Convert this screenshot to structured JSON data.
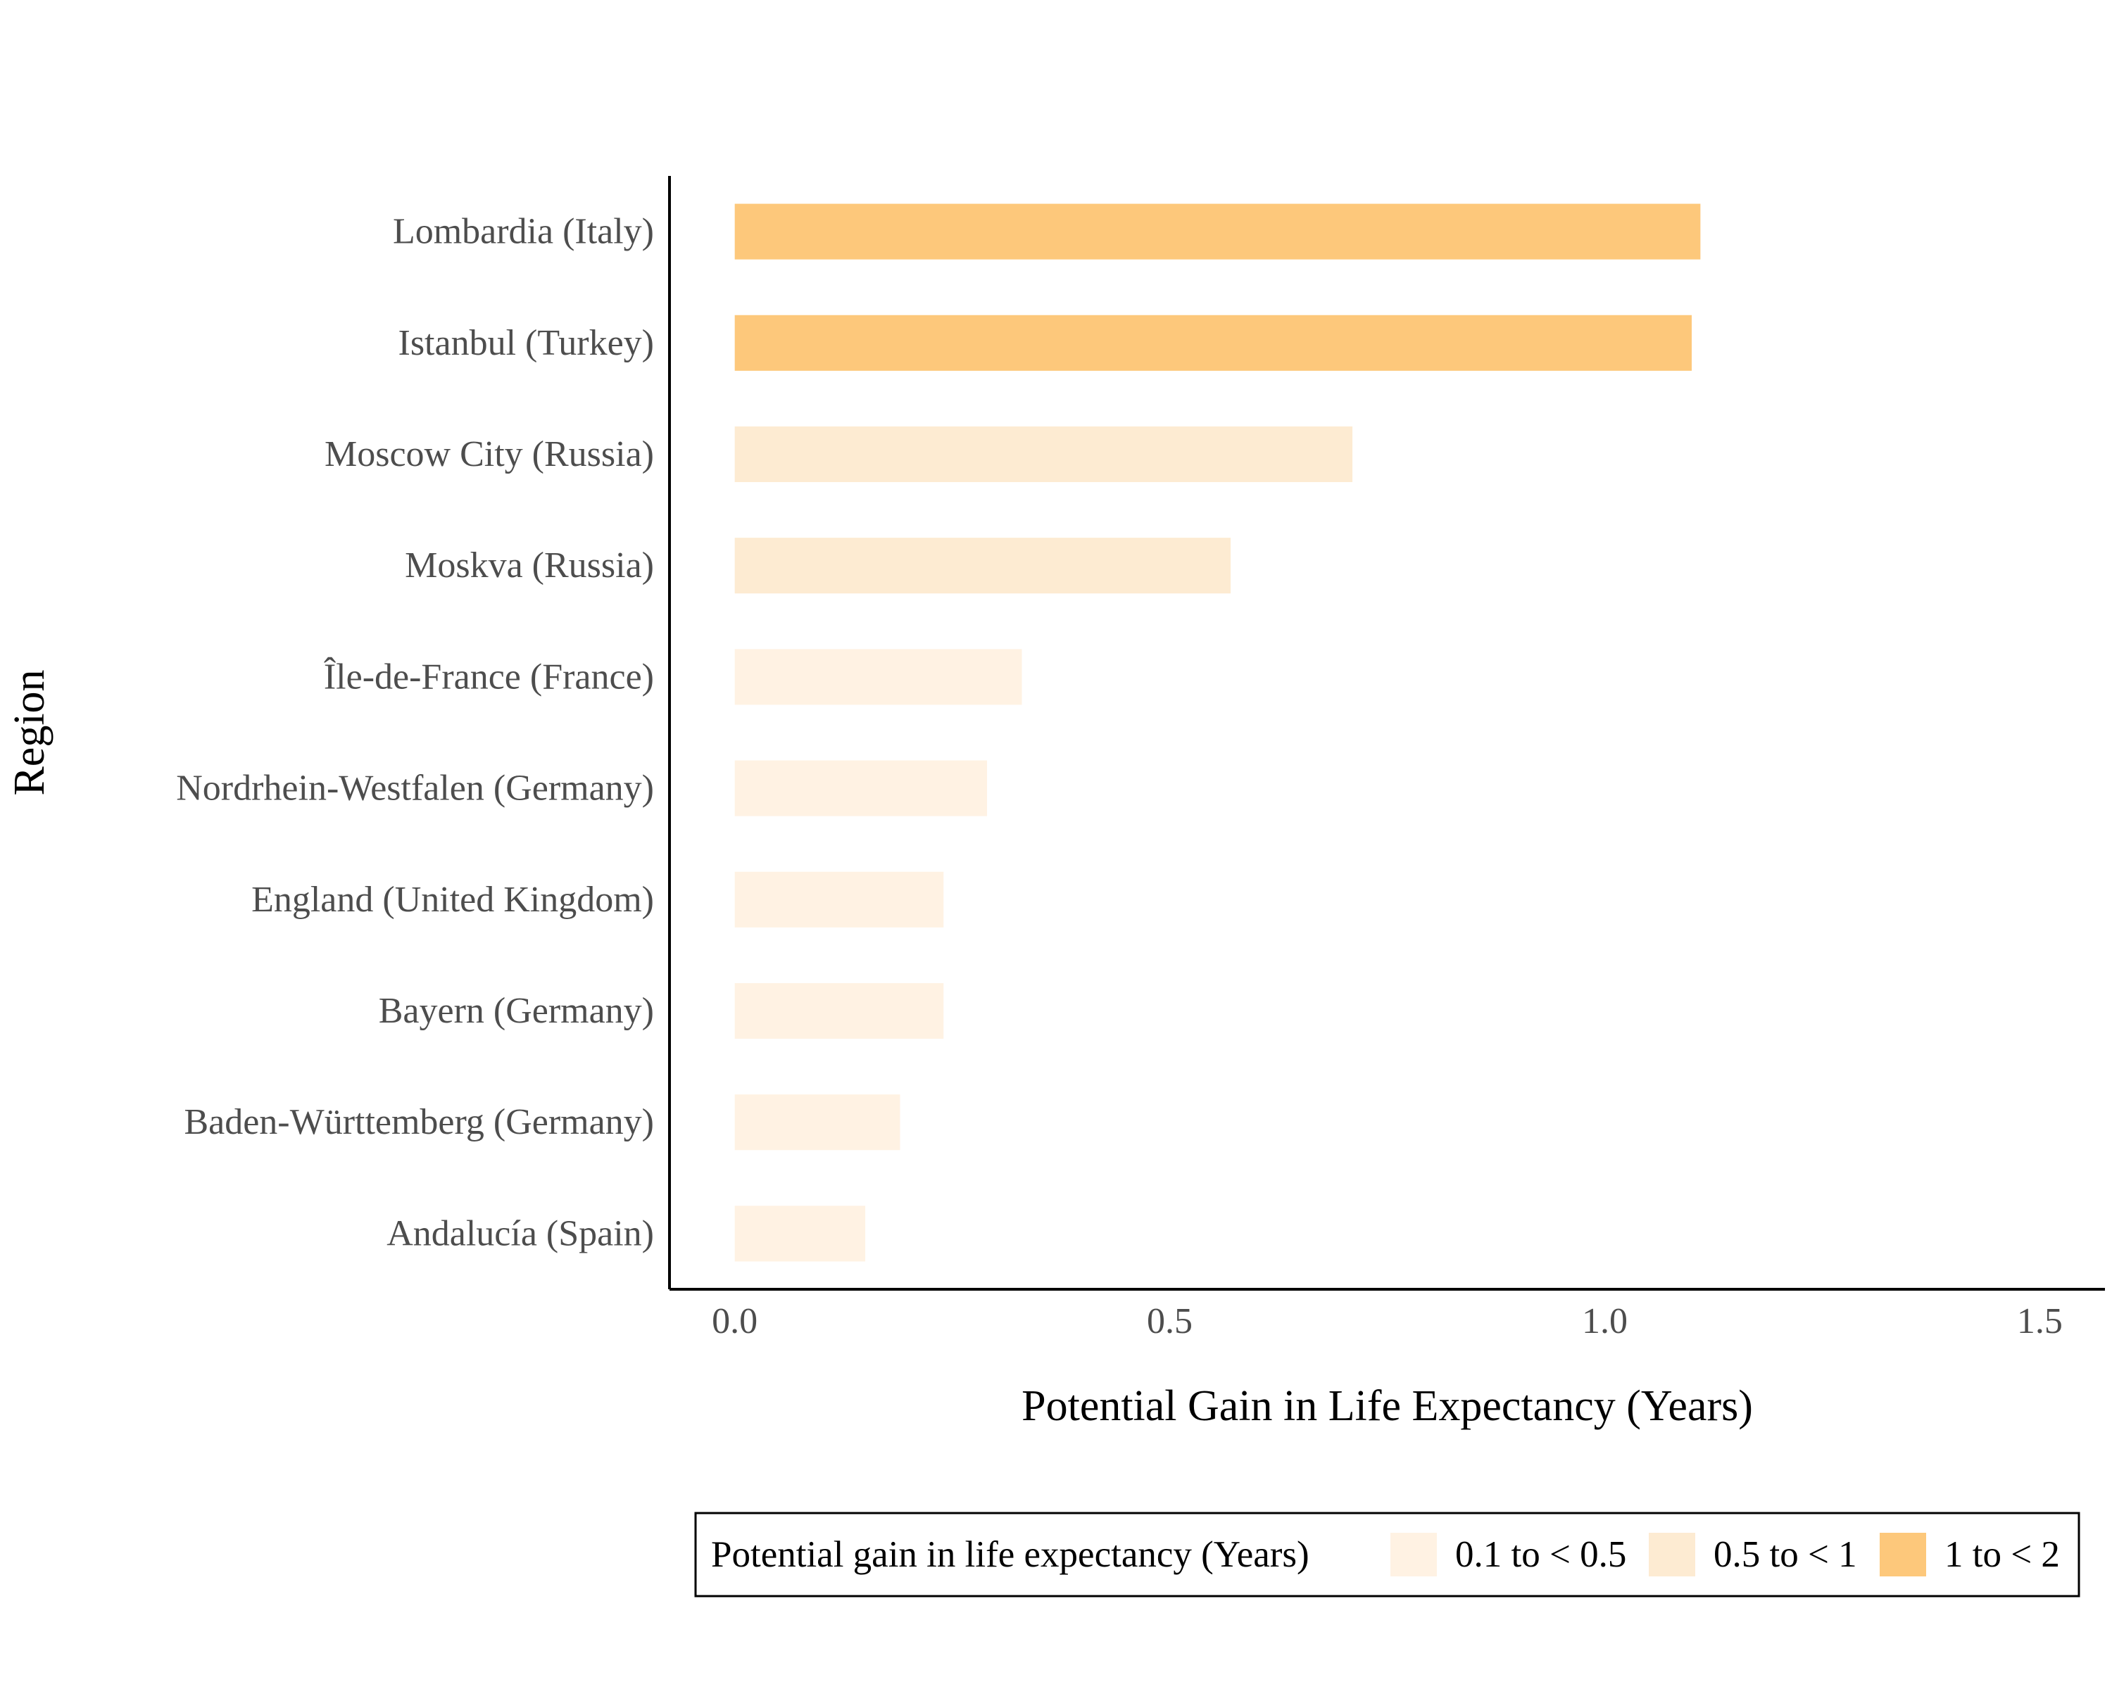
{
  "chart_data": {
    "type": "bar",
    "orientation": "horizontal",
    "categories": [
      "Lombardia (Italy)",
      "Istanbul (Turkey)",
      "Moscow City (Russia)",
      "Moskva (Russia)",
      "Île-de-France (France)",
      "Nordrhein-Westfalen (Germany)",
      "England (United Kingdom)",
      "Bayern (Germany)",
      "Baden-Württemberg (Germany)",
      "Andalucía (Spain)"
    ],
    "values": [
      1.11,
      1.1,
      0.71,
      0.57,
      0.33,
      0.29,
      0.24,
      0.24,
      0.19,
      0.15
    ],
    "groups": [
      "1 to < 2",
      "1 to < 2",
      "0.5 to < 1",
      "0.5 to < 1",
      "0.1 to < 0.5",
      "0.1 to < 0.5",
      "0.1 to < 0.5",
      "0.1 to < 0.5",
      "0.1 to < 0.5",
      "0.1 to < 0.5"
    ],
    "xlabel": "Potential Gain in Life Expectancy (Years)",
    "ylabel": "Region",
    "xlim": [
      -0.075,
      1.575
    ],
    "xticks": [
      "0.0",
      "0.5",
      "1.0",
      "1.5"
    ],
    "grid": false,
    "legend": {
      "title": "Potential gain in life expectancy (Years)",
      "placement": "bottom",
      "entries": [
        {
          "label": "0.1 to < 0.5",
          "color": "#fff2e3"
        },
        {
          "label": "0.5 to < 1",
          "color": "#fdebd2"
        },
        {
          "label": "1 to < 2",
          "color": "#fdc87b"
        }
      ]
    },
    "colors": {
      "1 to < 2": "#fdc87b",
      "0.5 to < 1": "#fdebd2",
      "0.1 to < 0.5": "#fff2e3"
    }
  }
}
